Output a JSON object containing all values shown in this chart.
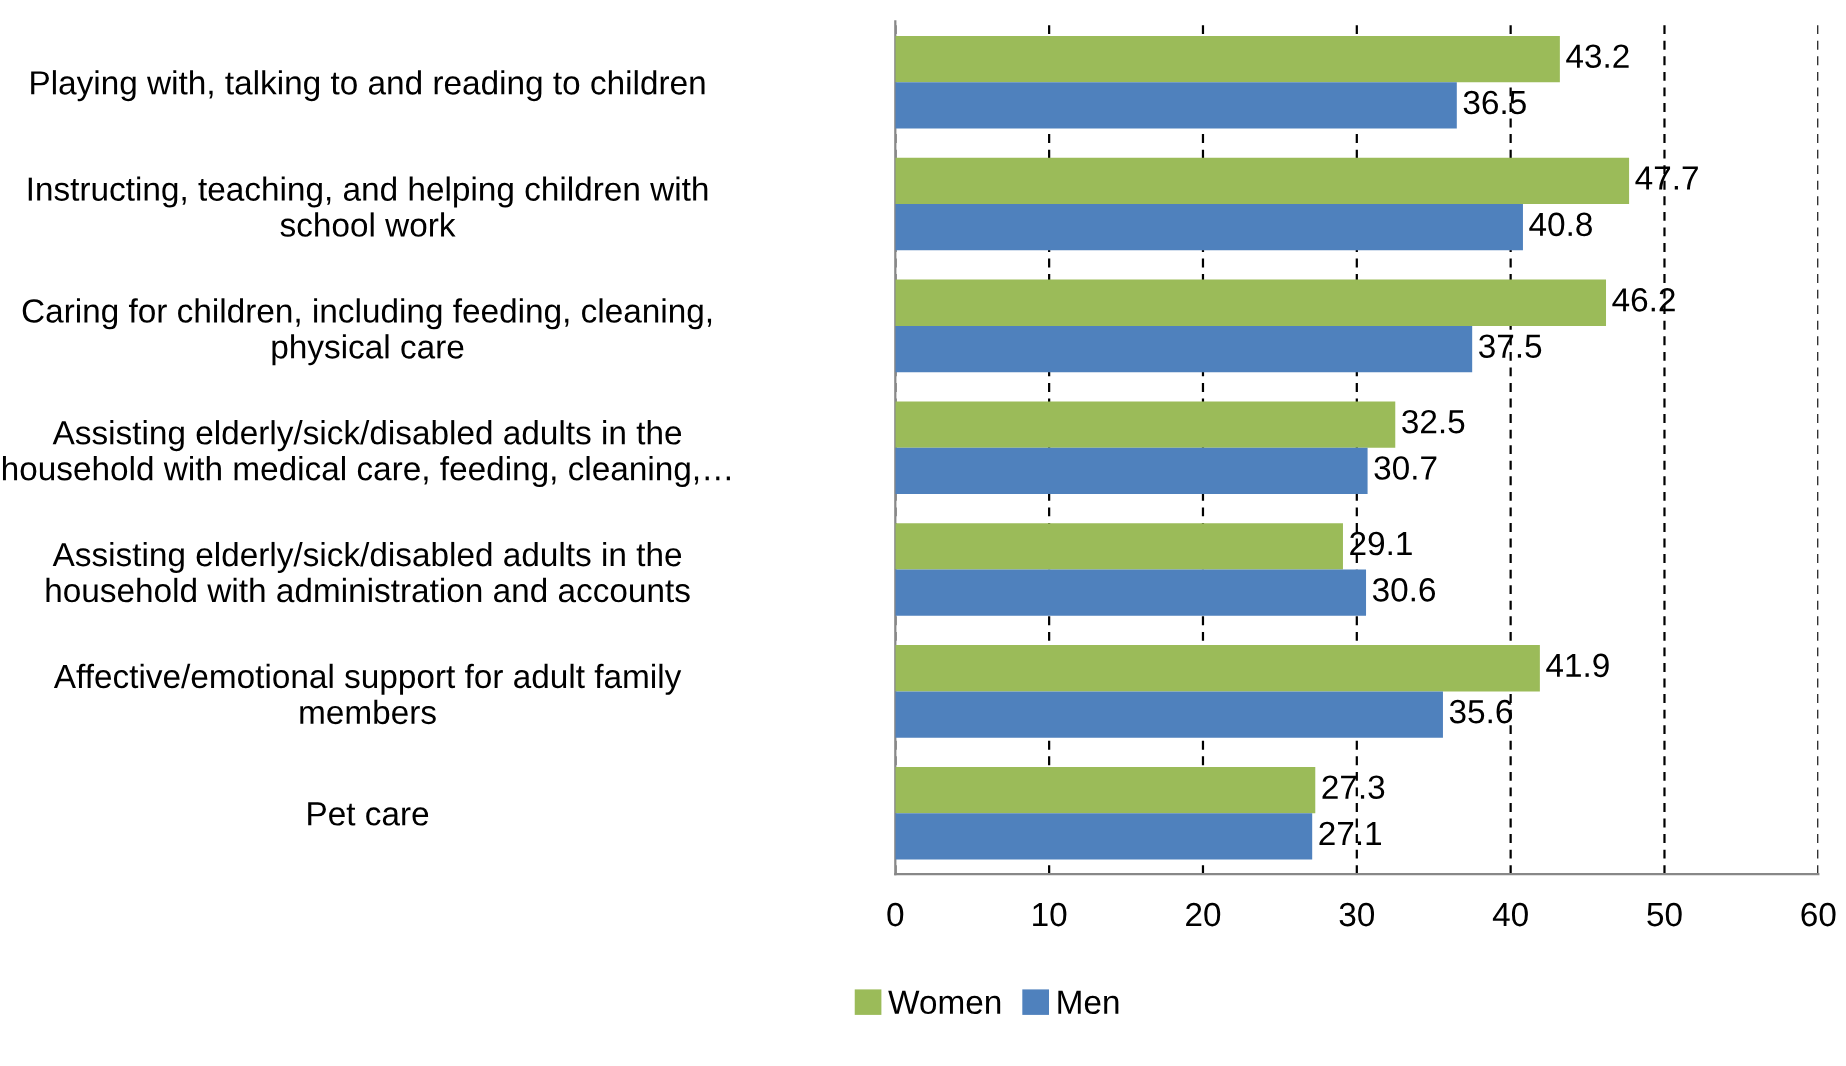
{
  "chart_data": {
    "type": "bar",
    "orientation": "horizontal",
    "categories": [
      "Playing with, talking to and reading to children",
      "Instructing, teaching, and helping children with\nschool work",
      "Caring for children, including feeding, cleaning,\nphysical care",
      "Assisting elderly/sick/disabled adults in the\nhousehold with medical care, feeding, cleaning,…",
      "Assisting elderly/sick/disabled adults in the\nhousehold with administration and accounts",
      "Affective/emotional support for adult family\nmembers",
      "Pet care"
    ],
    "series": [
      {
        "name": "Women",
        "color": "#9bbb59",
        "values": [
          43.2,
          47.7,
          46.2,
          32.5,
          29.1,
          41.9,
          27.3
        ]
      },
      {
        "name": "Men",
        "color": "#4f81bd",
        "values": [
          36.5,
          40.8,
          37.5,
          30.7,
          30.6,
          35.6,
          27.1
        ]
      }
    ],
    "xlim": [
      0,
      60
    ],
    "xticks": [
      0,
      10,
      20,
      30,
      40,
      50,
      60
    ],
    "grid": "x",
    "legend": "bottom",
    "data_labels": true
  }
}
